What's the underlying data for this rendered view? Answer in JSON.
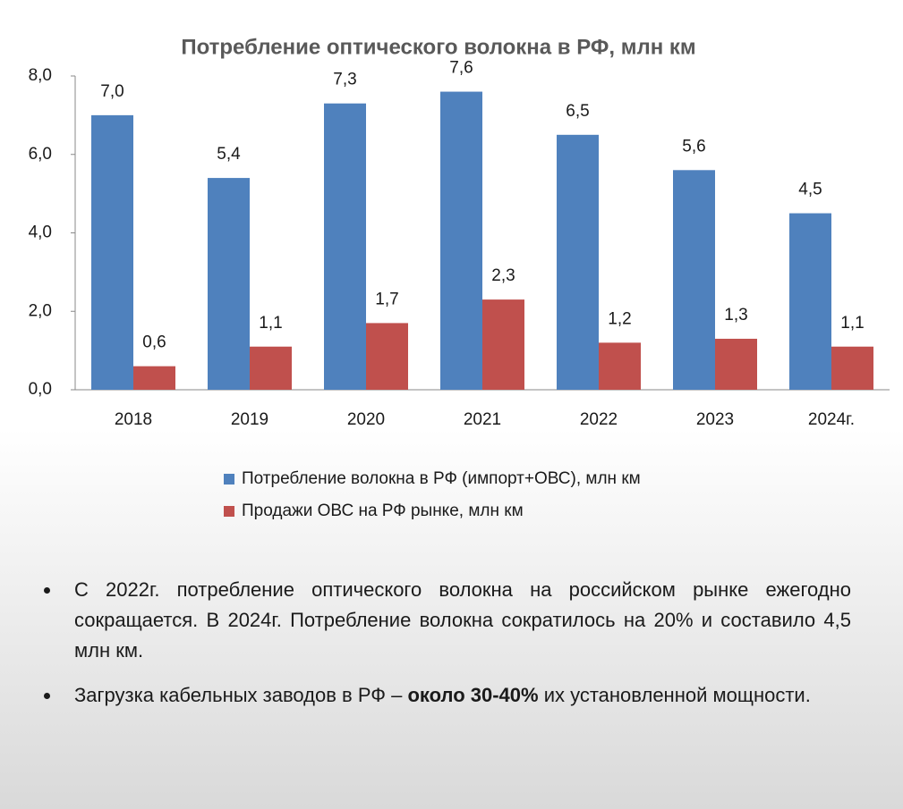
{
  "chart_data": {
    "type": "bar",
    "title": "Потребление оптического волокна в РФ, млн км",
    "categories": [
      "2018",
      "2019",
      "2020",
      "2021",
      "2022",
      "2023",
      "2024г."
    ],
    "series": [
      {
        "name": "Потребление волокна в РФ (импорт+ОВС), млн км",
        "color": "#4f81bd",
        "values": [
          7.0,
          5.4,
          7.3,
          7.6,
          6.5,
          5.6,
          4.5
        ],
        "value_labels": [
          "7,0",
          "5,4",
          "7,3",
          "7,6",
          "6,5",
          "5,6",
          "4,5"
        ]
      },
      {
        "name": "Продажи ОВС на РФ рынке, млн км",
        "color": "#c0504d",
        "values": [
          0.6,
          1.1,
          1.7,
          2.3,
          1.2,
          1.3,
          1.1
        ],
        "value_labels": [
          "0,6",
          "1,1",
          "1,7",
          "2,3",
          "1,2",
          "1,3",
          "1,1"
        ]
      }
    ],
    "ylim": [
      0,
      8
    ],
    "yticks": [
      {
        "value": 0,
        "label": "0,0"
      },
      {
        "value": 2,
        "label": "2,0"
      },
      {
        "value": 4,
        "label": "4,0"
      },
      {
        "value": 6,
        "label": "6,0"
      },
      {
        "value": 8,
        "label": "8,0"
      }
    ],
    "grid": false,
    "legend": "bottom"
  },
  "bullets": [
    {
      "parts": [
        "С 2022г. потребление оптического волокна на российском рынке ежегодно сокращается. В 2024г. Потребление волокна сократилось на 20% и составило 4,5 млн км."
      ]
    },
    {
      "parts": [
        "Загрузка кабельных заводов в РФ – ",
        "около 30-40%",
        " их установленной мощности."
      ]
    }
  ]
}
